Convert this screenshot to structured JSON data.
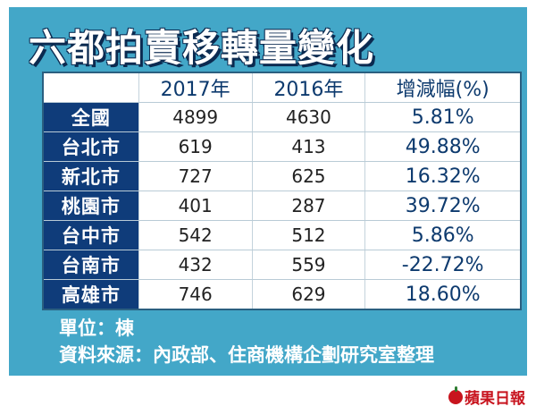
{
  "title": "六都拍賣移轉量變化",
  "table": {
    "headers": [
      "",
      "2017年",
      "2016年",
      "增減幅(%)"
    ],
    "rows": [
      {
        "city": "全國",
        "y2017": "4899",
        "y2016": "4630",
        "change": "5.81%"
      },
      {
        "city": "台北市",
        "y2017": "619",
        "y2016": "413",
        "change": "49.88%"
      },
      {
        "city": "新北市",
        "y2017": "727",
        "y2016": "625",
        "change": "16.32%"
      },
      {
        "city": "桃園市",
        "y2017": "401",
        "y2016": "287",
        "change": "39.72%"
      },
      {
        "city": "台中市",
        "y2017": "542",
        "y2016": "512",
        "change": "5.86%"
      },
      {
        "city": "台南市",
        "y2017": "432",
        "y2016": "559",
        "change": "-22.72%"
      },
      {
        "city": "高雄市",
        "y2017": "746",
        "y2016": "629",
        "change": "18.60%"
      }
    ]
  },
  "notes": {
    "unit": "單位：棟",
    "source": "資料來源：內政部、住商機構企劃研究室整理"
  },
  "logo": {
    "text": "蘋果日報",
    "icon": "apple-icon"
  },
  "colors": {
    "panel": "#43a7c8",
    "city_cell": "#0f3c7a",
    "title_shadow": "#0b2a50",
    "logo": "#c8141e"
  }
}
